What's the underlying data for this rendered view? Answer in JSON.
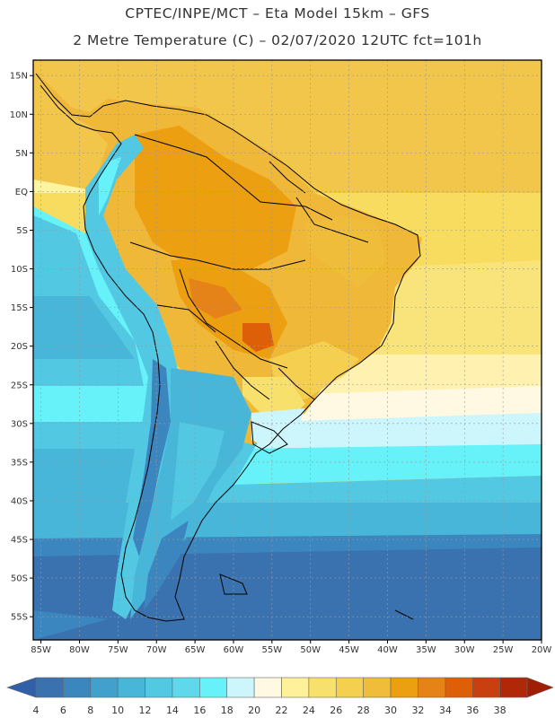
{
  "title_line1": "CPTEC/INPE/MCT –  Eta Model 15km – GFS",
  "title_line2": "2 Metre Temperature (C) – 02/07/2020 12UTC fct=101h",
  "lat_labels": [
    "15N",
    "10N",
    "5N",
    "EQ",
    "5S",
    "10S",
    "15S",
    "20S",
    "25S",
    "30S",
    "35S",
    "40S",
    "45S",
    "50S",
    "55S"
  ],
  "lon_labels": [
    "85W",
    "80W",
    "75W",
    "70W",
    "65W",
    "60W",
    "55W",
    "50W",
    "45W",
    "40W",
    "35W",
    "30W",
    "25W",
    "20W"
  ],
  "colorbar": {
    "labels": [
      "4",
      "6",
      "8",
      "10",
      "12",
      "14",
      "16",
      "18",
      "20",
      "22",
      "24",
      "26",
      "28",
      "30",
      "32",
      "34",
      "36",
      "38"
    ],
    "colors": [
      "#3a72b0",
      "#3c86c0",
      "#41a0cc",
      "#48b6d8",
      "#52c8e2",
      "#5ed8ea",
      "#66f2f8",
      "#cdf6fc",
      "#fff8e2",
      "#fff199",
      "#f7e06c",
      "#f5d050",
      "#efbd3a",
      "#ec9f10",
      "#e58218",
      "#dd6008",
      "#c84010",
      "#b02808"
    ],
    "low_color": "#3060a8",
    "high_color": "#a01e06"
  }
}
